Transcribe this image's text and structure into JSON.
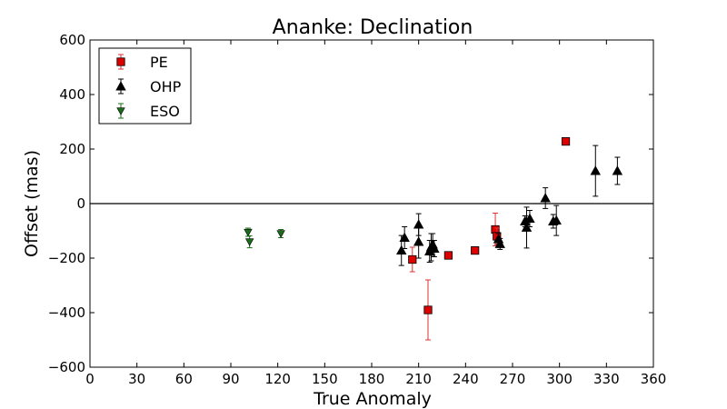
{
  "chart_data": {
    "type": "scatter",
    "title": "Ananke: Declination",
    "xlabel": "True Anomaly",
    "ylabel": "Offset (mas)",
    "xlim": [
      0,
      360
    ],
    "ylim": [
      -600,
      600
    ],
    "xticks": [
      0,
      30,
      60,
      90,
      120,
      150,
      180,
      210,
      240,
      270,
      300,
      330,
      360
    ],
    "yticks": [
      -600,
      -400,
      -200,
      0,
      200,
      400,
      600
    ],
    "grid": false,
    "zero_line": true,
    "legend_position": "top-left",
    "series": [
      {
        "name": "PE",
        "marker": "square",
        "color": "#dd0000",
        "errcolor": "#dd3333",
        "points": [
          {
            "x": 206,
            "y": -205,
            "err": 45
          },
          {
            "x": 216,
            "y": -390,
            "err": 110
          },
          {
            "x": 229,
            "y": -190,
            "err": 0
          },
          {
            "x": 246,
            "y": -172,
            "err": 0
          },
          {
            "x": 259,
            "y": -95,
            "err": 60
          },
          {
            "x": 260,
            "y": -120,
            "err": 30
          },
          {
            "x": 304,
            "y": 228,
            "err": 0
          }
        ]
      },
      {
        "name": "OHP",
        "marker": "triangle",
        "color": "#000000",
        "errcolor": "#000000",
        "points": [
          {
            "x": 199,
            "y": -172,
            "err": 55
          },
          {
            "x": 201,
            "y": -125,
            "err": 40
          },
          {
            "x": 210,
            "y": -140,
            "err": 60
          },
          {
            "x": 210,
            "y": -77,
            "err": 40
          },
          {
            "x": 217,
            "y": -175,
            "err": 40
          },
          {
            "x": 218,
            "y": -160,
            "err": 50
          },
          {
            "x": 219,
            "y": -150,
            "err": 40
          },
          {
            "x": 220,
            "y": -165,
            "err": 30
          },
          {
            "x": 261,
            "y": -130,
            "err": 20
          },
          {
            "x": 262,
            "y": -148,
            "err": 20
          },
          {
            "x": 278,
            "y": -65,
            "err": 20
          },
          {
            "x": 279,
            "y": -88,
            "err": 75
          },
          {
            "x": 281,
            "y": -55,
            "err": 30
          },
          {
            "x": 291,
            "y": 20,
            "err": 38
          },
          {
            "x": 296,
            "y": -65,
            "err": 25
          },
          {
            "x": 298,
            "y": -62,
            "err": 55
          },
          {
            "x": 323,
            "y": 120,
            "err": 93
          },
          {
            "x": 337,
            "y": 120,
            "err": 50
          }
        ]
      },
      {
        "name": "ESO",
        "marker": "triangle-down",
        "color": "#1a6e1a",
        "errcolor": "#1a6e1a",
        "points": [
          {
            "x": 101,
            "y": -105,
            "err": 15
          },
          {
            "x": 102,
            "y": -140,
            "err": 22
          },
          {
            "x": 122,
            "y": -110,
            "err": 15
          }
        ]
      }
    ]
  }
}
